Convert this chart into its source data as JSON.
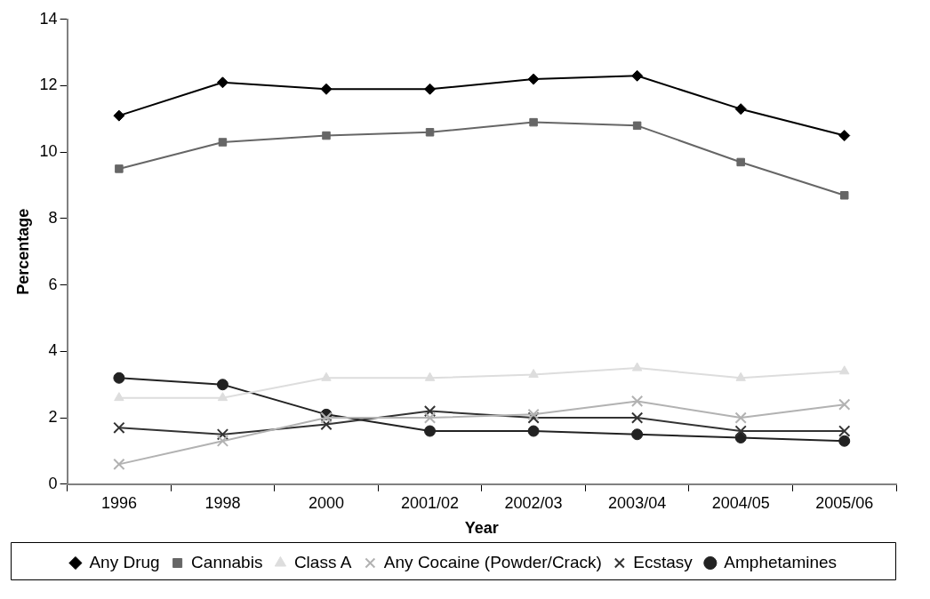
{
  "chart_data": {
    "type": "line",
    "xlabel": "Year",
    "ylabel": "Percentage",
    "categories": [
      "1996",
      "1998",
      "2000",
      "2001/02",
      "2002/03",
      "2003/04",
      "2004/05",
      "2005/06"
    ],
    "ylim": [
      0,
      14
    ],
    "yticks": [
      0,
      2,
      4,
      6,
      8,
      10,
      12,
      14
    ],
    "grid": false,
    "legend": "bottom",
    "series": [
      {
        "name": "Any Drug",
        "color": "#000000",
        "marker": "diamond",
        "values": [
          11.1,
          12.1,
          11.9,
          11.9,
          12.2,
          12.3,
          11.3,
          10.5
        ]
      },
      {
        "name": "Cannabis",
        "color": "#666666",
        "marker": "square",
        "values": [
          9.5,
          10.3,
          10.5,
          10.6,
          10.9,
          10.8,
          9.7,
          8.7
        ]
      },
      {
        "name": "Class A",
        "color": "#dddddd",
        "marker": "triangle",
        "values": [
          2.6,
          2.6,
          3.2,
          3.2,
          3.3,
          3.5,
          3.2,
          3.4
        ]
      },
      {
        "name": "Any Cocaine (Powder/Crack)",
        "color": "#b2b2b2",
        "marker": "cross",
        "values": [
          0.6,
          1.3,
          2.0,
          2.0,
          2.1,
          2.5,
          2.0,
          2.4
        ]
      },
      {
        "name": "Ecstasy",
        "color": "#333333",
        "marker": "cross",
        "values": [
          1.7,
          1.5,
          1.8,
          2.2,
          2.0,
          2.0,
          1.6,
          1.6
        ]
      },
      {
        "name": "Amphetamines",
        "color": "#222222",
        "marker": "circle",
        "values": [
          3.2,
          3.0,
          2.1,
          1.6,
          1.6,
          1.5,
          1.4,
          1.3
        ]
      }
    ]
  }
}
